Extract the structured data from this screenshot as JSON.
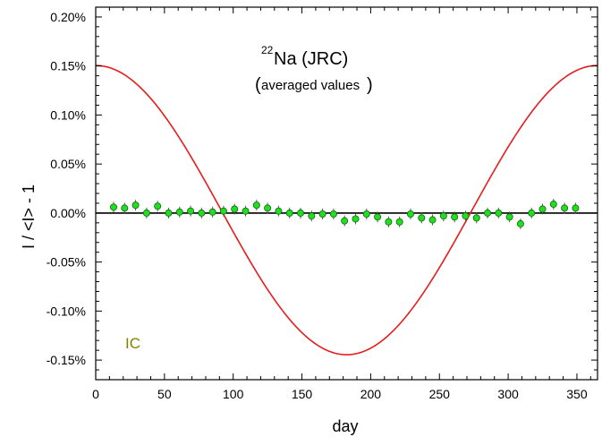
{
  "chart_data": {
    "type": "scatter",
    "title": {
      "superscript": "22",
      "main": "Na (JRC)",
      "subtitle": "averaged values"
    },
    "xlabel": "day",
    "ylabel": "I / <I> - 1",
    "xlim": [
      0,
      365
    ],
    "ylim": [
      -0.17,
      0.21
    ],
    "x_ticks": [
      0,
      50,
      100,
      150,
      200,
      250,
      300,
      350
    ],
    "x_tick_labels": [
      "0",
      "50",
      "100",
      "150",
      "200",
      "250",
      "300",
      "350"
    ],
    "y_ticks": [
      -0.15,
      -0.1,
      -0.05,
      0.0,
      0.05,
      0.1,
      0.15,
      0.2
    ],
    "y_tick_labels": [
      "-0.15%",
      "-0.10%",
      "-0.05%",
      "0.00%",
      "0.05%",
      "0.10%",
      "0.15%",
      "0.20%"
    ],
    "annotation": "IC",
    "annotation_color": "#808000",
    "zero_line": true,
    "series": [
      {
        "type": "line",
        "color": "#e51c1c",
        "amplitude": 0.1475,
        "offset": 0.003,
        "phase_day": 0,
        "period_days": 365,
        "x": [
          0,
          10,
          20,
          30,
          40,
          50,
          60,
          70,
          80,
          90,
          100,
          110,
          120,
          130,
          140,
          150,
          160,
          170,
          180,
          190,
          200,
          210,
          220,
          230,
          240,
          250,
          260,
          270,
          280,
          290,
          300,
          310,
          320,
          330,
          340,
          350,
          360,
          365
        ],
        "y": [
          0.1505,
          0.1489,
          0.1433,
          0.134,
          0.1212,
          0.1052,
          0.0864,
          0.0654,
          0.0426,
          0.0187,
          -0.0057,
          -0.0298,
          -0.0529,
          -0.0745,
          -0.0939,
          -0.1105,
          -0.1239,
          -0.1337,
          -0.1395,
          -0.1413,
          -0.139,
          -0.1326,
          -0.1223,
          -0.1083,
          -0.0911,
          -0.0712,
          -0.0492,
          -0.0258,
          -0.0016,
          0.0226,
          0.0462,
          0.0685,
          0.089,
          0.1072,
          0.1226,
          0.1348,
          0.1435,
          0.1505
        ]
      },
      {
        "type": "scatter",
        "color": "#22dd22",
        "edge_color": "#0a6a0a",
        "x": [
          13,
          21,
          29,
          37,
          45,
          53,
          61,
          69,
          77,
          85,
          93,
          101,
          109,
          117,
          125,
          133,
          141,
          149,
          157,
          165,
          173,
          181,
          189,
          197,
          205,
          213,
          221,
          229,
          237,
          245,
          253,
          261,
          269,
          277,
          285,
          293,
          301,
          309,
          317,
          325,
          333,
          341,
          349
        ],
        "y": [
          0.006,
          0.005,
          0.008,
          0.0,
          0.007,
          0.0,
          0.001,
          0.002,
          0.0,
          0.001,
          0.002,
          0.004,
          0.002,
          0.008,
          0.005,
          0.002,
          0.0,
          0.0,
          -0.003,
          -0.001,
          -0.001,
          -0.008,
          -0.006,
          -0.001,
          -0.004,
          -0.009,
          -0.009,
          -0.001,
          -0.005,
          -0.007,
          -0.003,
          -0.004,
          -0.003,
          -0.005,
          0.0,
          0.0,
          -0.004,
          -0.011,
          0.0,
          0.004,
          0.009,
          0.005,
          0.005
        ]
      }
    ]
  }
}
